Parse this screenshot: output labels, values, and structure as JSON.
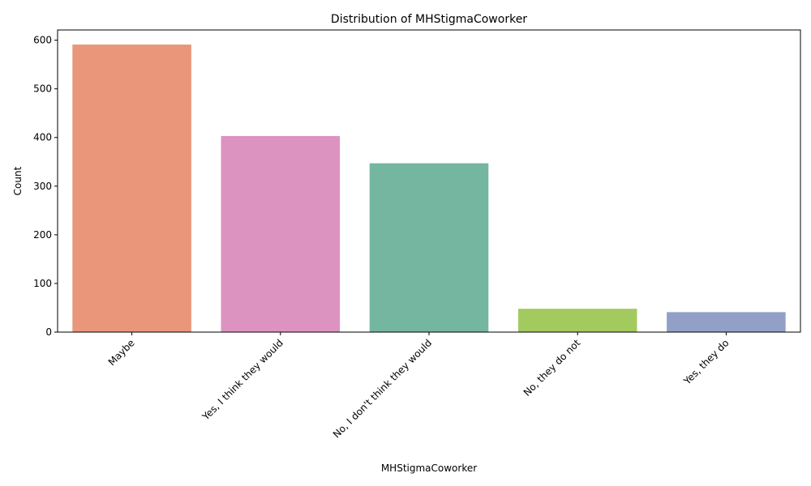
{
  "chart_data": {
    "type": "bar",
    "title": "Distribution of MHStigmaCoworker",
    "xlabel": "MHStigmaCoworker",
    "ylabel": "Count",
    "categories": [
      "Maybe",
      "Yes, I think they would",
      "No, I don't think they would",
      "No, they do not",
      "Yes, they do"
    ],
    "values": [
      591,
      403,
      347,
      48,
      41
    ],
    "colors": [
      "#e9967a",
      "#dc93c0",
      "#74b6a0",
      "#a3ca5f",
      "#929fc6"
    ],
    "ylim": [
      0,
      621
    ],
    "yticks": [
      0,
      100,
      200,
      300,
      400,
      500,
      600
    ],
    "grid": false,
    "legend": "none"
  }
}
